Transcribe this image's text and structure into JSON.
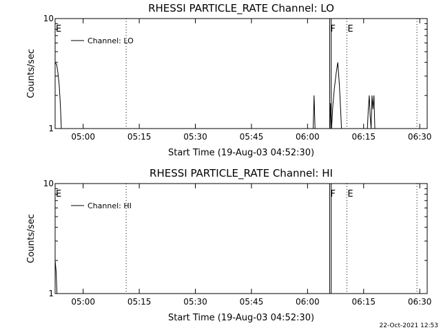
{
  "footer": "22-Oct-2021 12:53",
  "chart_data": [
    {
      "type": "line",
      "title": "RHESSI PARTICLE_RATE Channel: LO",
      "xlabel": "Start Time (19-Aug-03 04:52:30)",
      "ylabel": "Counts/sec",
      "yscale": "log",
      "ylim": [
        1,
        10
      ],
      "y_ticks": [
        "1",
        "10"
      ],
      "xlim": [
        "04:52:30",
        "06:32:00"
      ],
      "x_ticks": [
        "05:00",
        "05:15",
        "05:30",
        "05:45",
        "06:00",
        "06:15",
        "06:30"
      ],
      "legend": {
        "label": "Channel: LO",
        "position": "top-left"
      },
      "markers": [
        {
          "label": "E",
          "time": "04:52:30",
          "style": "solid"
        },
        {
          "label": "",
          "time": "05:11:30",
          "style": "dotted"
        },
        {
          "label": "F",
          "time": "06:05:55",
          "style": "solid"
        },
        {
          "label": "",
          "time": "06:06:20",
          "style": "solid"
        },
        {
          "label": "E",
          "time": "06:10:30",
          "style": "dotted"
        },
        {
          "label": "",
          "time": "06:29:15",
          "style": "dotted"
        }
      ],
      "series": [
        {
          "name": "Channel: LO",
          "points": [
            [
              "04:52:30",
              4.0
            ],
            [
              "04:52:55",
              3.8
            ],
            [
              "04:53:15",
              3.2
            ],
            [
              "04:53:35",
              2.5
            ],
            [
              "04:53:55",
              1.6
            ],
            [
              "04:54:10",
              1.0
            ],
            [
              "06:01:30",
              1.0
            ],
            [
              "06:01:45",
              2.0
            ],
            [
              "06:02:00",
              1.0
            ],
            [
              "06:06:00",
              1.0
            ],
            [
              "06:06:10",
              1.7
            ],
            [
              "06:06:25",
              1.0
            ],
            [
              "06:06:45",
              1.6
            ],
            [
              "06:07:10",
              2.3
            ],
            [
              "06:07:40",
              3.2
            ],
            [
              "06:08:05",
              4.0
            ],
            [
              "06:08:30",
              2.5
            ],
            [
              "06:08:50",
              1.5
            ],
            [
              "06:09:05",
              1.0
            ],
            [
              "06:16:00",
              1.0
            ],
            [
              "06:16:15",
              1.5
            ],
            [
              "06:16:30",
              2.0
            ],
            [
              "06:16:45",
              1.3
            ],
            [
              "06:17:00",
              1.0
            ],
            [
              "06:17:15",
              2.0
            ],
            [
              "06:17:30",
              1.5
            ],
            [
              "06:17:45",
              2.0
            ],
            [
              "06:18:00",
              1.0
            ]
          ]
        }
      ]
    },
    {
      "type": "line",
      "title": "RHESSI PARTICLE_RATE Channel: HI",
      "xlabel": "Start Time (19-Aug-03 04:52:30)",
      "ylabel": "Counts/sec",
      "yscale": "log",
      "ylim": [
        1,
        10
      ],
      "y_ticks": [
        "1",
        "10"
      ],
      "xlim": [
        "04:52:30",
        "06:32:00"
      ],
      "x_ticks": [
        "05:00",
        "05:15",
        "05:30",
        "05:45",
        "06:00",
        "06:15",
        "06:30"
      ],
      "legend": {
        "label": "Channel: HI",
        "position": "top-left"
      },
      "markers": [
        {
          "label": "E",
          "time": "04:52:30",
          "style": "solid"
        },
        {
          "label": "",
          "time": "05:11:30",
          "style": "dotted"
        },
        {
          "label": "F",
          "time": "06:05:55",
          "style": "solid"
        },
        {
          "label": "",
          "time": "06:06:20",
          "style": "solid"
        },
        {
          "label": "E",
          "time": "06:10:30",
          "style": "dotted"
        },
        {
          "label": "",
          "time": "06:29:15",
          "style": "dotted"
        }
      ],
      "series": [
        {
          "name": "Channel: HI",
          "points": [
            [
              "04:52:30",
              2.0
            ],
            [
              "04:52:45",
              1.6
            ],
            [
              "04:53:00",
              1.0
            ]
          ]
        }
      ]
    }
  ]
}
